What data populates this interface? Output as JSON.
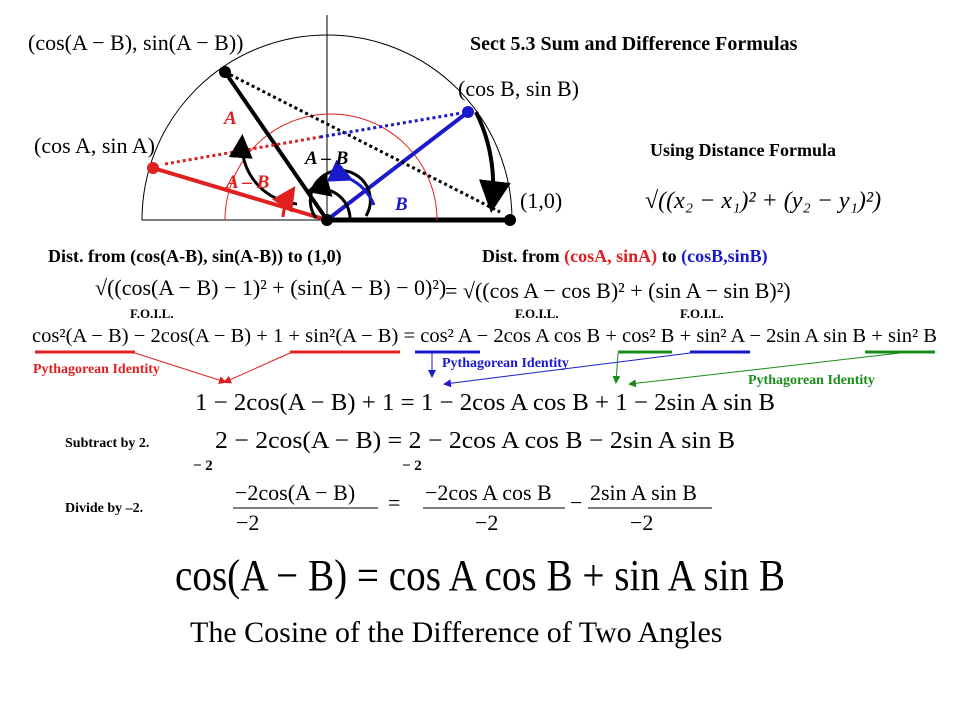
{
  "header": {
    "title": "Sect 5.3 Sum and Difference Formulas"
  },
  "diagram": {
    "point_diff": "(cos(A − B), sin(A − B))",
    "point_a": "(cos A, sin A)",
    "point_b": "(cos B, sin B)",
    "point_one": "(1,0)",
    "label_a": "A",
    "label_diff_black": "A – B",
    "label_diff_red": "A – B",
    "label_b": "B"
  },
  "distance": {
    "heading": "Using Distance Formula",
    "formula": "√((x₂ − x₁)² + (y₂ − y₁)²)"
  },
  "left_heading": "Dist. from (cos(A-B), sin(A-B)) to (1,0)",
  "right_heading": {
    "lead": "Dist. from ",
    "point_a": "(cosA, sinA)",
    "mid": " to ",
    "point_b": "(cosB,sinB)"
  },
  "left_formula": "√((cos(A − B) − 1)² + (sin(A − B) − 0)²)",
  "right_formula": "= √((cos A − cos B)² + (sin A − sin B)²)",
  "foil": [
    "F.O.I.L.",
    "F.O.I.L.",
    "F.O.I.L."
  ],
  "expanded": "cos²(A − B) − 2cos(A − B) + 1 + sin²(A − B) = cos² A − 2cos A cos B + cos² B + sin² A − 2sin A sin B + sin² B",
  "identities": [
    "Pythagorean Identity",
    "Pythagorean Identity",
    "Pythagorean Identity"
  ],
  "simplified": "1 − 2cos(A − B) + 1 = 1 − 2cos A cos B + 1 − 2sin A sin B",
  "subtract": {
    "note": "Subtract by 2.",
    "formula": "2 − 2cos(A − B) = 2 − 2cos A cos B − 2sin A sin B",
    "left": "− 2",
    "right": "− 2"
  },
  "divide": {
    "note": "Divide by –2.",
    "num1": "−2cos(A − B)",
    "num2": "−2cos A cos B",
    "num3": "2sin A sin B",
    "den": [
      "−2",
      "−2",
      "−2"
    ],
    "eq": "=",
    "minus": "−"
  },
  "result": "cos(A − B) = cos A cos B + sin A sin B",
  "caption": "The Cosine of the Difference of Two Angles"
}
